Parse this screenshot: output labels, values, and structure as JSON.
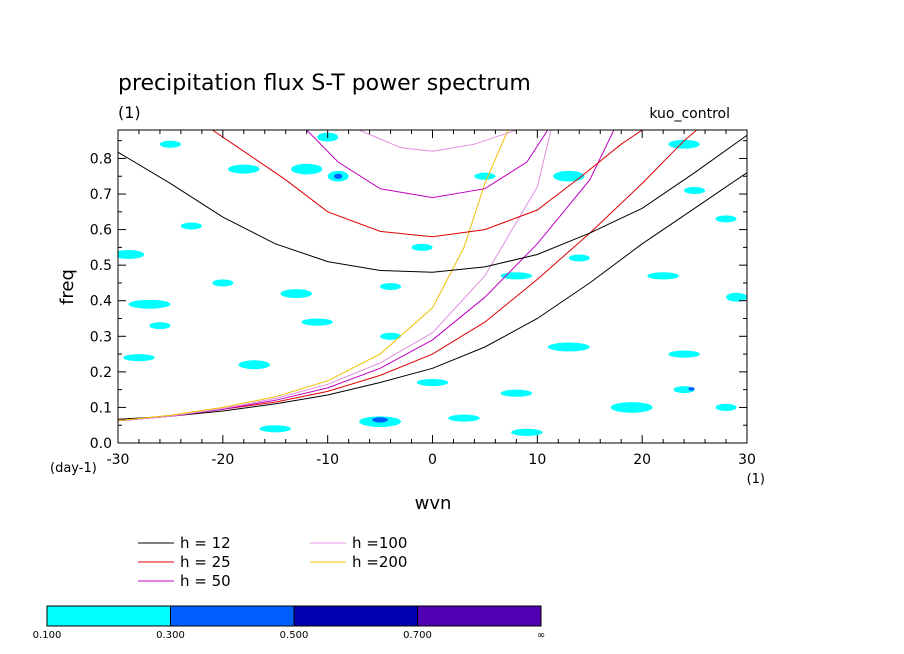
{
  "chart_data": {
    "type": "contour",
    "title": "precipitation flux S-T power spectrum",
    "subtitle_left": "(1)",
    "subtitle_right": "kuo_control",
    "xlabel": "wvn",
    "ylabel": "freq",
    "x_unit": "(1)",
    "y_unit": "(day-1)",
    "xlim": [
      -30,
      30
    ],
    "ylim": [
      0,
      0.88
    ],
    "x_ticks": [
      -30,
      -20,
      -10,
      0,
      10,
      20,
      30
    ],
    "x_tick_labels": [
      "-30",
      "-20",
      "-10",
      "0",
      "10",
      "20",
      "30"
    ],
    "y_ticks": [
      0.0,
      0.1,
      0.2,
      0.3,
      0.4,
      0.5,
      0.6,
      0.7,
      0.8
    ],
    "y_tick_labels": [
      "0.0",
      "0.1",
      "0.2",
      "0.3",
      "0.4",
      "0.5",
      "0.6",
      "0.7",
      "0.8"
    ],
    "legend_lines": [
      {
        "label": "h = 12",
        "color": "#000000"
      },
      {
        "label": "h = 25",
        "color": "#e00000"
      },
      {
        "label": "h = 50",
        "color": "#c000c0"
      },
      {
        "label": "h =100",
        "color": "#e090e0"
      },
      {
        "label": "h =200",
        "color": "#f0c000"
      }
    ],
    "colorbar": {
      "levels": [
        "0.100",
        "0.300",
        "0.500",
        "0.700",
        "∞"
      ],
      "colors": [
        "#00ffff",
        "#0060ff",
        "#0000b0",
        "#5000b0"
      ]
    },
    "series": [
      {
        "name": "h = 12",
        "color": "#000000",
        "points": [
          [
            -31,
            0.065
          ],
          [
            -25,
            0.075
          ],
          [
            -20,
            0.09
          ],
          [
            -15,
            0.11
          ],
          [
            -10,
            0.135
          ],
          [
            -5,
            0.17
          ],
          [
            0,
            0.21
          ],
          [
            5,
            0.27
          ],
          [
            10,
            0.35
          ],
          [
            15,
            0.45
          ],
          [
            20,
            0.56
          ],
          [
            25,
            0.66
          ],
          [
            30,
            0.76
          ]
        ]
      },
      {
        "name": "h = 25",
        "color": "#e00000",
        "points": [
          [
            -31,
            0.06
          ],
          [
            -25,
            0.075
          ],
          [
            -20,
            0.095
          ],
          [
            -15,
            0.115
          ],
          [
            -10,
            0.145
          ],
          [
            -5,
            0.19
          ],
          [
            0,
            0.25
          ],
          [
            5,
            0.34
          ],
          [
            10,
            0.46
          ],
          [
            15,
            0.59
          ],
          [
            20,
            0.73
          ],
          [
            24,
            0.85
          ],
          [
            25.2,
            0.88
          ]
        ]
      },
      {
        "name": "h = 50",
        "color": "#c000c0",
        "points": [
          [
            -31,
            0.06
          ],
          [
            -25,
            0.075
          ],
          [
            -20,
            0.095
          ],
          [
            -15,
            0.12
          ],
          [
            -10,
            0.155
          ],
          [
            -5,
            0.21
          ],
          [
            0,
            0.29
          ],
          [
            5,
            0.41
          ],
          [
            10,
            0.56
          ],
          [
            15,
            0.74
          ],
          [
            17.3,
            0.88
          ]
        ]
      },
      {
        "name": "h =100",
        "color": "#e090e0",
        "points": [
          [
            -31,
            0.06
          ],
          [
            -25,
            0.075
          ],
          [
            -20,
            0.097
          ],
          [
            -15,
            0.125
          ],
          [
            -10,
            0.165
          ],
          [
            -5,
            0.225
          ],
          [
            0,
            0.31
          ],
          [
            5,
            0.47
          ],
          [
            10,
            0.72
          ],
          [
            11.3,
            0.88
          ]
        ]
      },
      {
        "name": "h =200",
        "color": "#f0c000",
        "points": [
          [
            -31,
            0.06
          ],
          [
            -25,
            0.078
          ],
          [
            -20,
            0.1
          ],
          [
            -15,
            0.13
          ],
          [
            -10,
            0.175
          ],
          [
            -5,
            0.25
          ],
          [
            0,
            0.38
          ],
          [
            3,
            0.55
          ],
          [
            5,
            0.73
          ],
          [
            7.2,
            0.88
          ]
        ]
      },
      {
        "name": "h = 12",
        "color": "#000000",
        "points": [
          [
            -31,
            0.835
          ],
          [
            -25,
            0.73
          ],
          [
            -20,
            0.635
          ],
          [
            -15,
            0.56
          ],
          [
            -10,
            0.51
          ],
          [
            -5,
            0.485
          ],
          [
            0,
            0.48
          ],
          [
            5,
            0.495
          ],
          [
            10,
            0.53
          ],
          [
            15,
            0.59
          ],
          [
            20,
            0.66
          ],
          [
            25,
            0.76
          ],
          [
            30,
            0.865
          ]
        ]
      },
      {
        "name": "h = 25",
        "color": "#e00000",
        "points": [
          [
            -21,
            0.88
          ],
          [
            -18,
            0.82
          ],
          [
            -14,
            0.74
          ],
          [
            -10,
            0.65
          ],
          [
            -5,
            0.595
          ],
          [
            0,
            0.58
          ],
          [
            5,
            0.6
          ],
          [
            10,
            0.655
          ],
          [
            14,
            0.745
          ],
          [
            18,
            0.84
          ],
          [
            20,
            0.88
          ]
        ]
      },
      {
        "name": "h = 50",
        "color": "#c000c0",
        "points": [
          [
            -12,
            0.88
          ],
          [
            -9,
            0.79
          ],
          [
            -5,
            0.715
          ],
          [
            0,
            0.69
          ],
          [
            5,
            0.715
          ],
          [
            9,
            0.79
          ],
          [
            11,
            0.88
          ]
        ]
      },
      {
        "name": "h =100",
        "color": "#e090e0",
        "points": [
          [
            -7,
            0.88
          ],
          [
            -3,
            0.83
          ],
          [
            0,
            0.82
          ],
          [
            4,
            0.84
          ],
          [
            8,
            0.88
          ]
        ]
      }
    ],
    "shaded_regions": [
      {
        "level": "0.100-0.300",
        "x": -12,
        "y": 0.77,
        "w": 3,
        "h": 0.03
      },
      {
        "level": "0.100-0.300",
        "x": -9,
        "y": 0.75,
        "w": 2,
        "h": 0.03
      },
      {
        "level": "0.300-0.500",
        "x": -9,
        "y": 0.75,
        "w": 0.8,
        "h": 0.015
      },
      {
        "level": "0.100-0.300",
        "x": -23,
        "y": 0.61,
        "w": 2,
        "h": 0.02
      },
      {
        "level": "0.100-0.300",
        "x": -18,
        "y": 0.77,
        "w": 3,
        "h": 0.025
      },
      {
        "level": "0.100-0.300",
        "x": -25,
        "y": 0.84,
        "w": 2,
        "h": 0.02
      },
      {
        "level": "0.100-0.300",
        "x": -10,
        "y": 0.86,
        "w": 2,
        "h": 0.025
      },
      {
        "level": "0.100-0.300",
        "x": 5,
        "y": 0.75,
        "w": 2,
        "h": 0.02
      },
      {
        "level": "0.100-0.300",
        "x": 13,
        "y": 0.75,
        "w": 3,
        "h": 0.03
      },
      {
        "level": "0.100-0.300",
        "x": 24,
        "y": 0.84,
        "w": 3,
        "h": 0.025
      },
      {
        "level": "0.100-0.300",
        "x": 25,
        "y": 0.71,
        "w": 2,
        "h": 0.02
      },
      {
        "level": "0.100-0.300",
        "x": -29,
        "y": 0.53,
        "w": 3,
        "h": 0.025
      },
      {
        "level": "0.100-0.300",
        "x": -20,
        "y": 0.45,
        "w": 2,
        "h": 0.02
      },
      {
        "level": "0.100-0.300",
        "x": -27,
        "y": 0.39,
        "w": 4,
        "h": 0.025
      },
      {
        "level": "0.100-0.300",
        "x": -13,
        "y": 0.42,
        "w": 3,
        "h": 0.025
      },
      {
        "level": "0.100-0.300",
        "x": -4,
        "y": 0.44,
        "w": 2,
        "h": 0.02
      },
      {
        "level": "0.100-0.300",
        "x": 8,
        "y": 0.47,
        "w": 3,
        "h": 0.02
      },
      {
        "level": "0.100-0.300",
        "x": 14,
        "y": 0.52,
        "w": 2,
        "h": 0.02
      },
      {
        "level": "0.100-0.300",
        "x": 22,
        "y": 0.47,
        "w": 3,
        "h": 0.02
      },
      {
        "level": "0.100-0.300",
        "x": 29,
        "y": 0.41,
        "w": 2,
        "h": 0.025
      },
      {
        "level": "0.100-0.300",
        "x": -26,
        "y": 0.33,
        "w": 2,
        "h": 0.02
      },
      {
        "level": "0.100-0.300",
        "x": -11,
        "y": 0.34,
        "w": 3,
        "h": 0.02
      },
      {
        "level": "0.100-0.300",
        "x": -4,
        "y": 0.3,
        "w": 2,
        "h": 0.02
      },
      {
        "level": "0.100-0.300",
        "x": 13,
        "y": 0.27,
        "w": 4,
        "h": 0.025
      },
      {
        "level": "0.100-0.300",
        "x": 24,
        "y": 0.25,
        "w": 3,
        "h": 0.02
      },
      {
        "level": "0.100-0.300",
        "x": -28,
        "y": 0.24,
        "w": 3,
        "h": 0.02
      },
      {
        "level": "0.100-0.300",
        "x": -17,
        "y": 0.22,
        "w": 3,
        "h": 0.025
      },
      {
        "level": "0.100-0.300",
        "x": 0,
        "y": 0.17,
        "w": 3,
        "h": 0.02
      },
      {
        "level": "0.100-0.300",
        "x": 8,
        "y": 0.14,
        "w": 3,
        "h": 0.02
      },
      {
        "level": "0.100-0.300",
        "x": 19,
        "y": 0.1,
        "w": 4,
        "h": 0.03
      },
      {
        "level": "0.100-0.300",
        "x": -5,
        "y": 0.06,
        "w": 4,
        "h": 0.03
      },
      {
        "level": "0.300-0.500",
        "x": -5,
        "y": 0.065,
        "w": 1.5,
        "h": 0.015
      },
      {
        "level": "0.100-0.300",
        "x": 24,
        "y": 0.15,
        "w": 2,
        "h": 0.02
      },
      {
        "level": "0.300-0.500",
        "x": 24.7,
        "y": 0.152,
        "w": 0.6,
        "h": 0.01
      },
      {
        "level": "0.100-0.300",
        "x": -15,
        "y": 0.04,
        "w": 3,
        "h": 0.02
      },
      {
        "level": "0.100-0.300",
        "x": 9,
        "y": 0.03,
        "w": 3,
        "h": 0.02
      },
      {
        "level": "0.100-0.300",
        "x": 28,
        "y": 0.1,
        "w": 2,
        "h": 0.02
      },
      {
        "level": "0.100-0.300",
        "x": 28,
        "y": 0.63,
        "w": 2,
        "h": 0.02
      },
      {
        "level": "0.100-0.300",
        "x": -1,
        "y": 0.55,
        "w": 2,
        "h": 0.02
      },
      {
        "level": "0.100-0.300",
        "x": 3,
        "y": 0.07,
        "w": 3,
        "h": 0.02
      }
    ]
  }
}
